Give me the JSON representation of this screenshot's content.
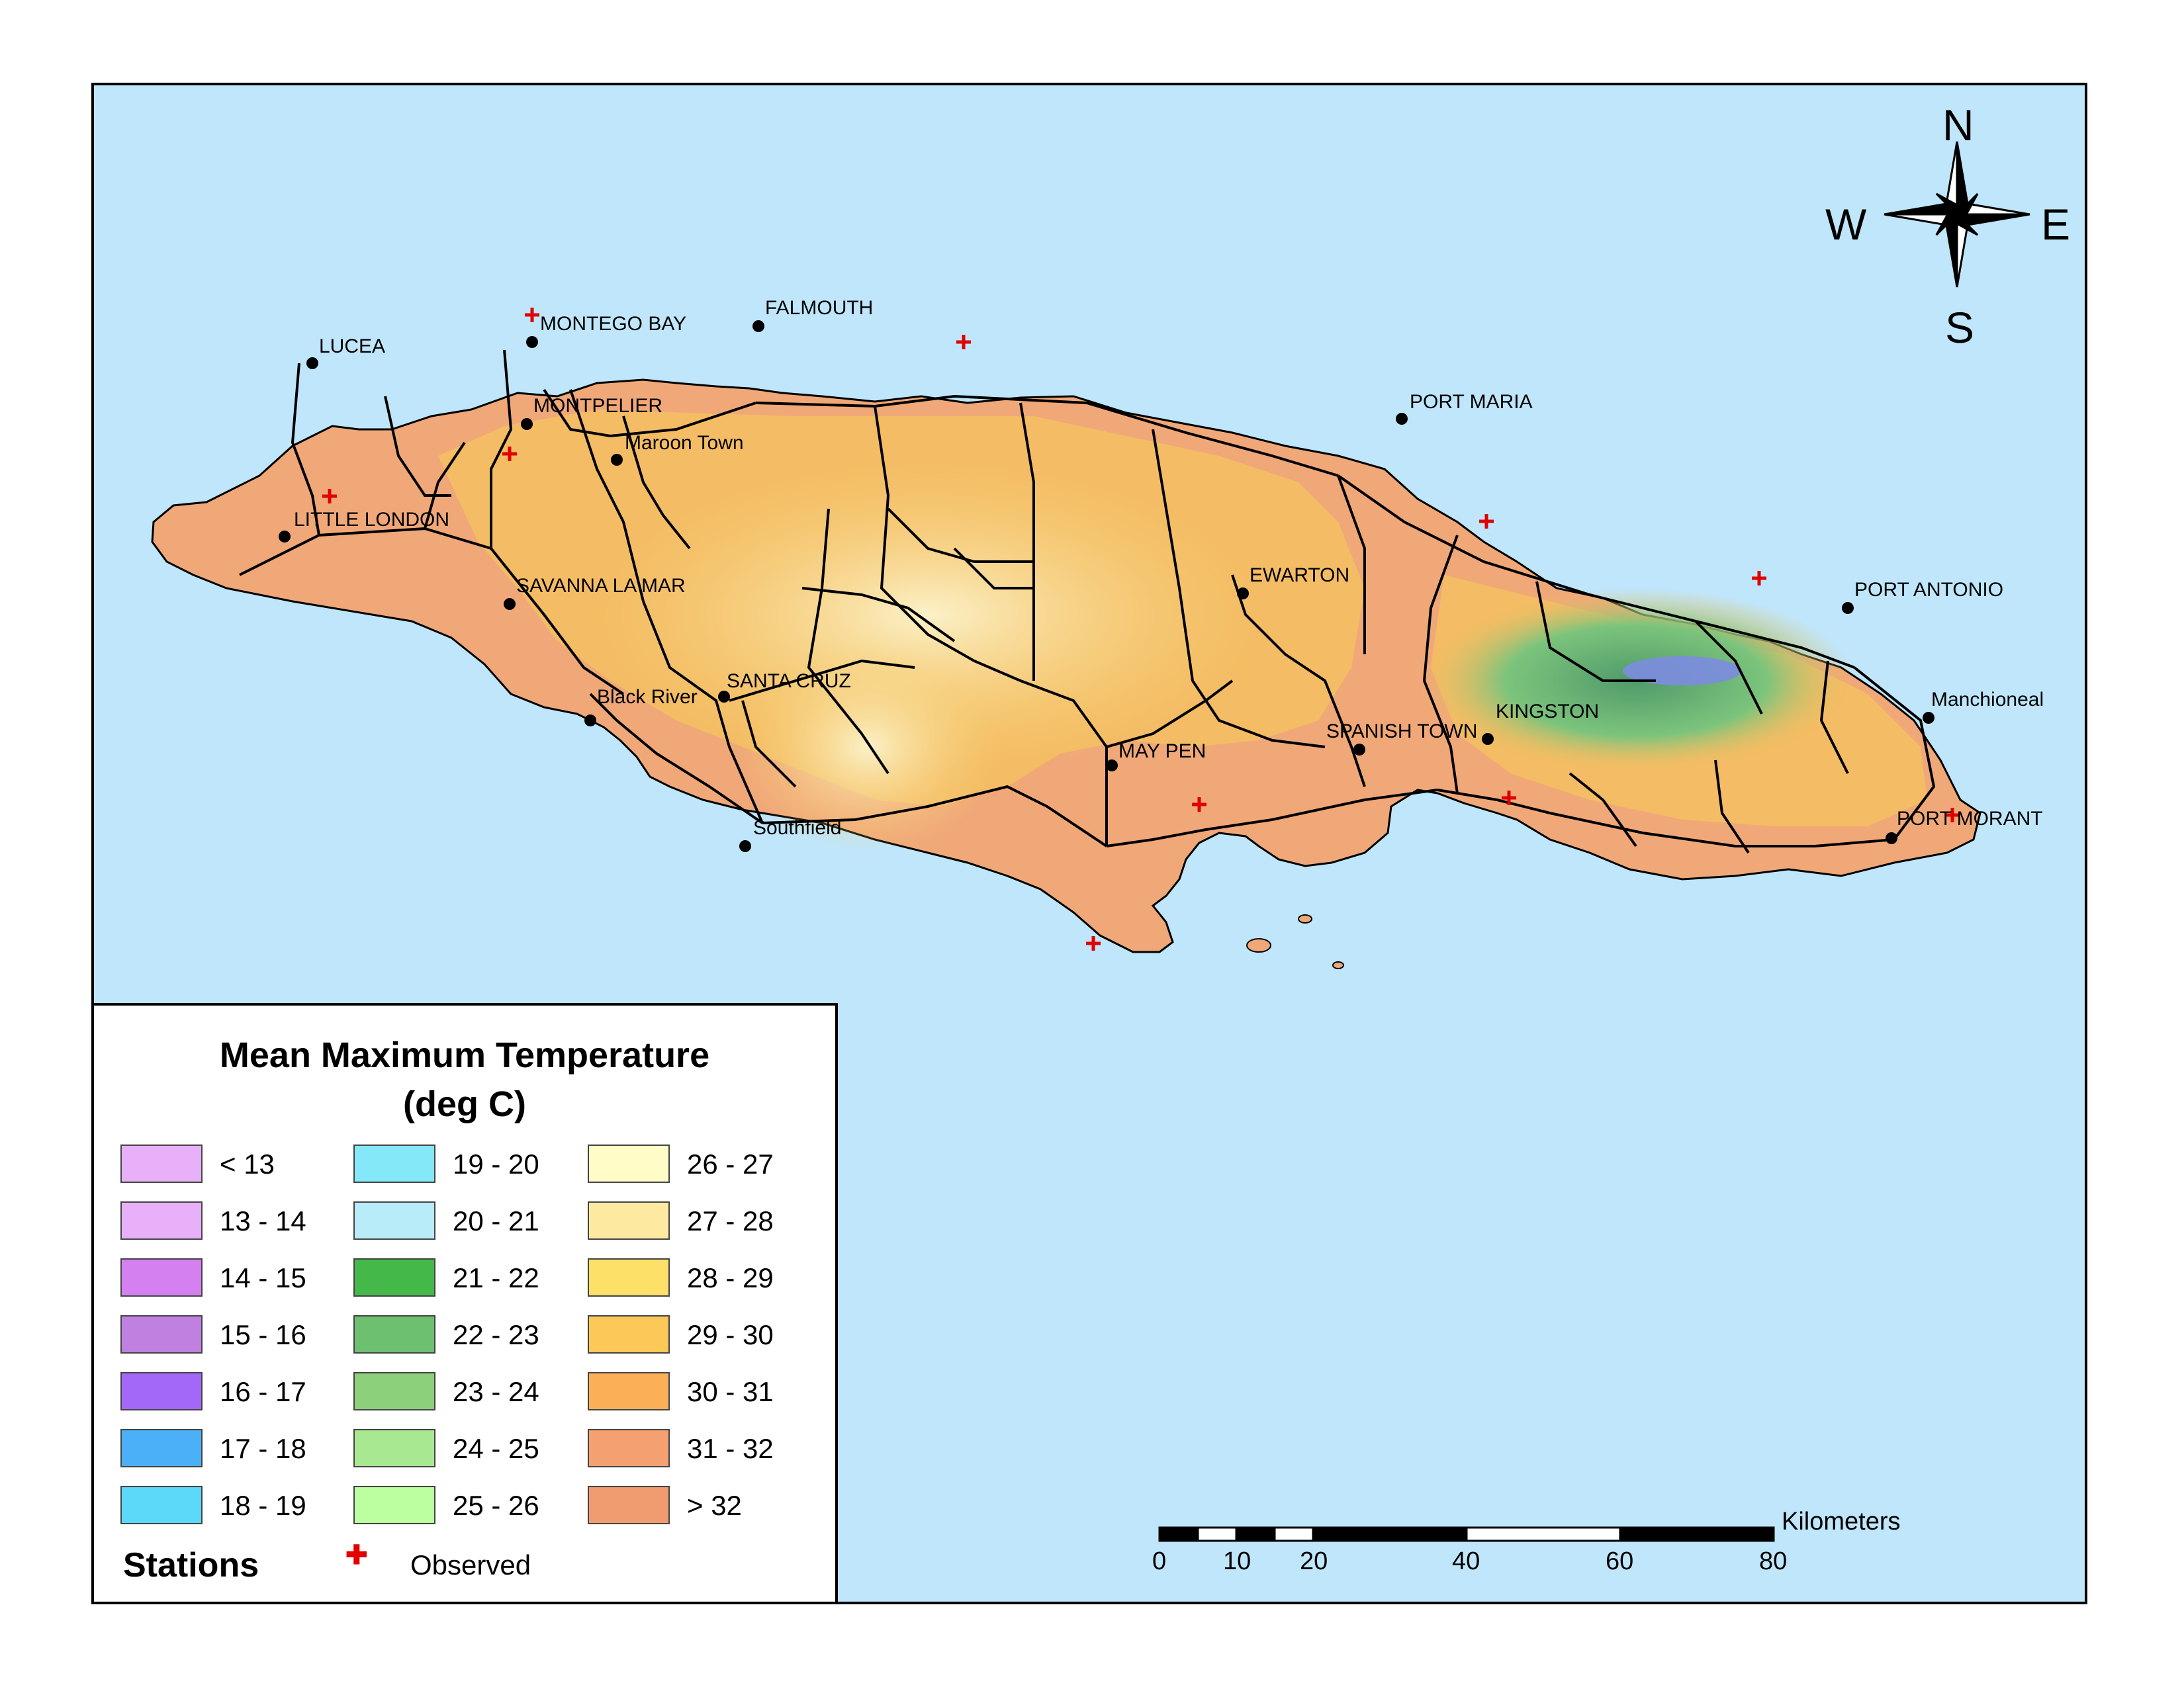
{
  "map": {
    "colors": {
      "sea": "#bfe6fb",
      "lowland": "#f0a878",
      "midland": "#f5c060",
      "upland": "#f9e8a8",
      "highland": "#6cc070",
      "peak": "#8080e0",
      "road": "#000000",
      "station": "#e00000"
    },
    "compass": {
      "n": "N",
      "s": "S",
      "e": "E",
      "w": "W"
    },
    "towns": [
      {
        "id": "lucea",
        "name": "LUCEA"
      },
      {
        "id": "montego-bay",
        "name": "MONTEGO BAY"
      },
      {
        "id": "falmouth",
        "name": "FALMOUTH"
      },
      {
        "id": "montpelier",
        "name": "MONTPELIER"
      },
      {
        "id": "maroon-town",
        "name": "Maroon Town"
      },
      {
        "id": "little-london",
        "name": "LITTLE LONDON"
      },
      {
        "id": "savanna-la-mar",
        "name": "SAVANNA LA MAR"
      },
      {
        "id": "black-river",
        "name": "Black River"
      },
      {
        "id": "santa-cruz",
        "name": "SANTA CRUZ"
      },
      {
        "id": "southfield",
        "name": "Southfield"
      },
      {
        "id": "may-pen",
        "name": "MAY PEN"
      },
      {
        "id": "ewarton",
        "name": "EWARTON"
      },
      {
        "id": "spanish-town",
        "name": "SPANISH TOWN"
      },
      {
        "id": "kingston",
        "name": "KINGSTON"
      },
      {
        "id": "port-maria",
        "name": "PORT MARIA"
      },
      {
        "id": "port-antonio",
        "name": "PORT ANTONIO"
      },
      {
        "id": "manchioneal",
        "name": "Manchioneal"
      },
      {
        "id": "port-morant",
        "name": "PORT MORANT"
      }
    ]
  },
  "legend": {
    "title_line1": "Mean Maximum Temperature",
    "title_line2": "(deg C)",
    "classes": [
      {
        "label": "< 13",
        "color": "#e8b0f8"
      },
      {
        "label": "13 - 14",
        "color": "#e8b0f8"
      },
      {
        "label": "14 - 15",
        "color": "#d480f0"
      },
      {
        "label": "15 - 16",
        "color": "#c080e0"
      },
      {
        "label": "16 - 17",
        "color": "#a468f8"
      },
      {
        "label": "17 - 18",
        "color": "#4cb0f8"
      },
      {
        "label": "18 - 19",
        "color": "#5cd8f8"
      },
      {
        "label": "19 - 20",
        "color": "#84e8f8"
      },
      {
        "label": "20 - 21",
        "color": "#b8ecf8"
      },
      {
        "label": "21 - 22",
        "color": "#44b848"
      },
      {
        "label": "22 - 23",
        "color": "#6cc070"
      },
      {
        "label": "23 - 24",
        "color": "#8cd07c"
      },
      {
        "label": "24 - 25",
        "color": "#a8e890"
      },
      {
        "label": "25 - 26",
        "color": "#bcffa0"
      },
      {
        "label": "26 - 27",
        "color": "#fffcc8"
      },
      {
        "label": "27 - 28",
        "color": "#fdeaa0"
      },
      {
        "label": "28 - 29",
        "color": "#fde068"
      },
      {
        "label": "29 - 30",
        "color": "#fcc858"
      },
      {
        "label": "30 - 31",
        "color": "#fbb058"
      },
      {
        "label": "31 - 32",
        "color": "#f4a070"
      },
      {
        "label": "> 32",
        "color": "#f09c70"
      }
    ],
    "stations_heading": "Stations",
    "observed_symbol": "✚",
    "observed_label": "Observed"
  },
  "scale_bar": {
    "unit": "Kilometers",
    "ticks": [
      "0",
      "10",
      "20",
      "40",
      "60",
      "80"
    ]
  }
}
